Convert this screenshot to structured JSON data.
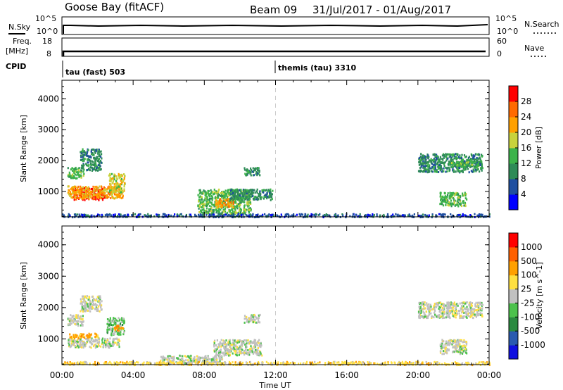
{
  "header": {
    "station": "Goose Bay (fitACF)",
    "beam": "Beam 09",
    "date_range": "31/Jul/2017 - 01/Aug/2017"
  },
  "status_panels": {
    "nsky_label": "N.Sky",
    "nsearch_label": "N.Search",
    "nsky_ticks": [
      "10^5",
      "10^0"
    ],
    "nsearch_ticks": [
      "10^5",
      "10^0"
    ],
    "freq_label": "Freq.",
    "freq_unit": "[MHz]",
    "freq_ticks": [
      "18",
      "8"
    ],
    "nave_label": "Nave",
    "nave_ticks": [
      "60",
      "0"
    ],
    "cpid_label": "CPID",
    "cpid_first": "tau (fast) 503",
    "cpid_second": "themis (tau) 3310"
  },
  "colors": {
    "power_scale": [
      "#0000ff",
      "#1f4fa0",
      "#2e8b57",
      "#3cb34a",
      "#c8d23c",
      "#ffa000",
      "#ff6a00",
      "#ff0000"
    ],
    "velocity_scale": [
      "#1010e0",
      "#2a5ab0",
      "#2a8a40",
      "#4cc24c",
      "#c0c0c0",
      "#ffe040",
      "#ffa000",
      "#ff6000",
      "#ff0000"
    ],
    "ground_scatter": "#c0c0c0"
  },
  "chart_data": [
    {
      "type": "heatmap",
      "title": "Power",
      "xlabel": "Time UT",
      "ylabel": "Slant Range [km]",
      "colorbar_label": "Power [dB]",
      "colorbar_ticks": [
        "28",
        "24",
        "20",
        "16",
        "12",
        "8",
        "4"
      ],
      "x_ticks": [
        "00:00",
        "04:00",
        "08:00",
        "12:00",
        "16:00",
        "20:00",
        "00:00"
      ],
      "y_ticks": [
        "4000",
        "3000",
        "2000",
        "1000"
      ],
      "xlim_hours": [
        0,
        24
      ],
      "ylim_km": [
        180,
        4600
      ],
      "regions": [
        {
          "t0": 0.6,
          "t1": 2.4,
          "r0": 750,
          "r1": 1150,
          "level": 7
        },
        {
          "t0": 0.3,
          "t1": 3.4,
          "r0": 800,
          "r1": 1200,
          "level": 5
        },
        {
          "t0": 0.3,
          "t1": 1.2,
          "r0": 1450,
          "r1": 1800,
          "level": 3
        },
        {
          "t0": 1.0,
          "t1": 2.2,
          "r0": 1700,
          "r1": 2400,
          "level": 2
        },
        {
          "t0": 2.6,
          "t1": 3.5,
          "r0": 1000,
          "r1": 1600,
          "level": 4
        },
        {
          "t0": 7.6,
          "t1": 10.6,
          "r0": 300,
          "r1": 1100,
          "level": 3
        },
        {
          "t0": 8.6,
          "t1": 9.6,
          "r0": 500,
          "r1": 800,
          "level": 5
        },
        {
          "t0": 9.4,
          "t1": 11.8,
          "r0": 750,
          "r1": 1100,
          "level": 2
        },
        {
          "t0": 10.2,
          "t1": 11.1,
          "r0": 1550,
          "r1": 1800,
          "level": 2
        },
        {
          "t0": 20.0,
          "t1": 23.6,
          "r0": 1650,
          "r1": 2250,
          "level": 2
        },
        {
          "t0": 21.8,
          "t1": 23.4,
          "r0": 1800,
          "r1": 2000,
          "level": 3
        },
        {
          "t0": 21.2,
          "t1": 22.7,
          "r0": 550,
          "r1": 1000,
          "level": 3
        },
        {
          "t0": 0.0,
          "t1": 24.0,
          "r0": 200,
          "r1": 300,
          "level": 1
        }
      ]
    },
    {
      "type": "heatmap",
      "title": "Velocity",
      "xlabel": "Time UT",
      "ylabel": "Slant Range [km]",
      "colorbar_label": "Velocity [m s^-1]",
      "colorbar_ticks": [
        "1000",
        "500",
        "100",
        "25",
        "-25",
        "-100",
        "-500",
        "-1000"
      ],
      "x_ticks": [
        "00:00",
        "04:00",
        "08:00",
        "12:00",
        "16:00",
        "20:00",
        "00:00"
      ],
      "y_ticks": [
        "4000",
        "3000",
        "2000",
        "1000"
      ],
      "xlim_hours": [
        0,
        24
      ],
      "ylim_km": [
        180,
        4600
      ],
      "regions": [
        {
          "t0": 0.3,
          "t1": 3.2,
          "r0": 750,
          "r1": 1050,
          "level": 4
        },
        {
          "t0": 0.3,
          "t1": 1.2,
          "r0": 1450,
          "r1": 1800,
          "level": 4
        },
        {
          "t0": 1.0,
          "t1": 2.2,
          "r0": 1900,
          "r1": 2400,
          "level": 4
        },
        {
          "t0": 0.4,
          "t1": 2.0,
          "r0": 1050,
          "r1": 1200,
          "level": 6
        },
        {
          "t0": 2.5,
          "t1": 3.5,
          "r0": 1150,
          "r1": 1700,
          "level": 3
        },
        {
          "t0": 2.9,
          "t1": 3.4,
          "r0": 1300,
          "r1": 1450,
          "level": 6
        },
        {
          "t0": 8.5,
          "t1": 11.2,
          "r0": 500,
          "r1": 1000,
          "level": 4
        },
        {
          "t0": 5.5,
          "t1": 9.0,
          "r0": 250,
          "r1": 500,
          "level": 4
        },
        {
          "t0": 10.2,
          "t1": 11.1,
          "r0": 1550,
          "r1": 1800,
          "level": 4
        },
        {
          "t0": 20.0,
          "t1": 23.6,
          "r0": 1700,
          "r1": 2200,
          "level": 4
        },
        {
          "t0": 21.2,
          "t1": 22.7,
          "r0": 550,
          "r1": 1000,
          "level": 4
        },
        {
          "t0": 0.0,
          "t1": 24.0,
          "r0": 200,
          "r1": 300,
          "level": 5
        }
      ]
    }
  ]
}
